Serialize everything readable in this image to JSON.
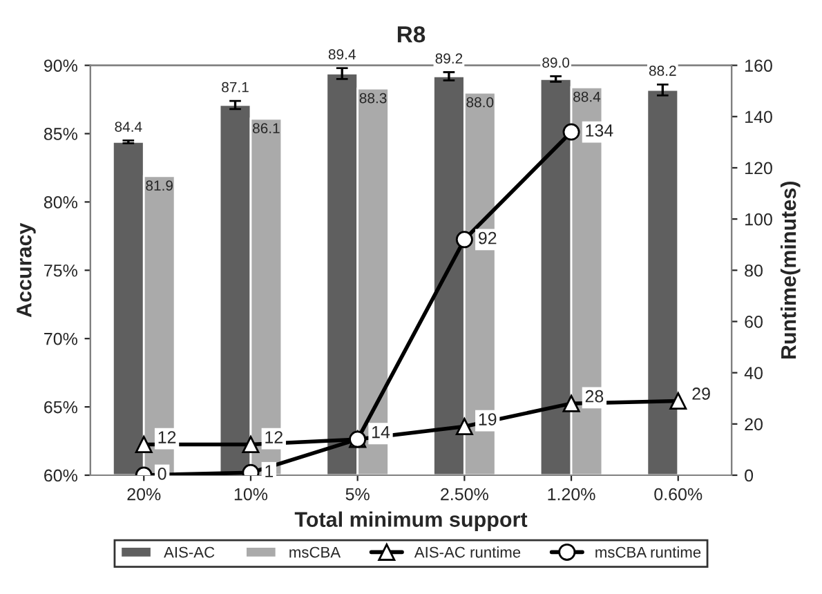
{
  "chart_data": {
    "type": "bar",
    "title": "R8",
    "xlabel": "Total minimum support",
    "ylabel": "Accuracy",
    "y2label": "Runtime(minutes)",
    "categories": [
      "20%",
      "10%",
      "5%",
      "2.50%",
      "1.20%",
      "0.60%"
    ],
    "ylim": [
      60,
      90
    ],
    "yticks": [
      {
        "value": 60,
        "label": "60%"
      },
      {
        "value": 65,
        "label": "65%"
      },
      {
        "value": 70,
        "label": "70%"
      },
      {
        "value": 75,
        "label": "75%"
      },
      {
        "value": 80,
        "label": "80%"
      },
      {
        "value": 85,
        "label": "85%"
      },
      {
        "value": 90,
        "label": "90%"
      }
    ],
    "y2lim": [
      0,
      160
    ],
    "y2ticks": [
      0,
      20,
      40,
      60,
      80,
      100,
      120,
      140,
      160
    ],
    "grid": false,
    "legend": "bottom",
    "series": [
      {
        "name": "AIS-AC",
        "color": "#5f5f5f",
        "values": [
          84.4,
          87.1,
          89.4,
          89.2,
          89.0,
          88.2
        ],
        "errors": [
          0.1,
          0.3,
          0.4,
          0.3,
          0.2,
          0.4
        ],
        "value_labels": [
          "84.4",
          "87.1",
          "89.4",
          "89.2",
          "89.0",
          "88.2"
        ]
      },
      {
        "name": "msCBA",
        "color": "#aaaaaa",
        "values": [
          81.9,
          86.1,
          88.3,
          88.0,
          88.4,
          null
        ],
        "value_labels": [
          "81.9",
          "86.1",
          "88.3",
          "88.0",
          "88.4",
          null
        ]
      },
      {
        "name": "AIS-AC runtime",
        "type": "line",
        "axis": "y2",
        "color": "#000000",
        "marker": "triangle",
        "values": [
          12,
          12,
          14,
          19,
          28,
          29
        ],
        "value_labels": [
          "12",
          "12",
          "14",
          "19",
          "28",
          "29"
        ]
      },
      {
        "name": "msCBA runtime",
        "type": "line",
        "axis": "y2",
        "color": "#000000",
        "marker": "circle",
        "values": [
          0,
          1,
          14,
          92,
          134,
          null
        ],
        "value_labels": [
          "0",
          "1",
          null,
          "92",
          "134",
          null
        ]
      }
    ]
  }
}
